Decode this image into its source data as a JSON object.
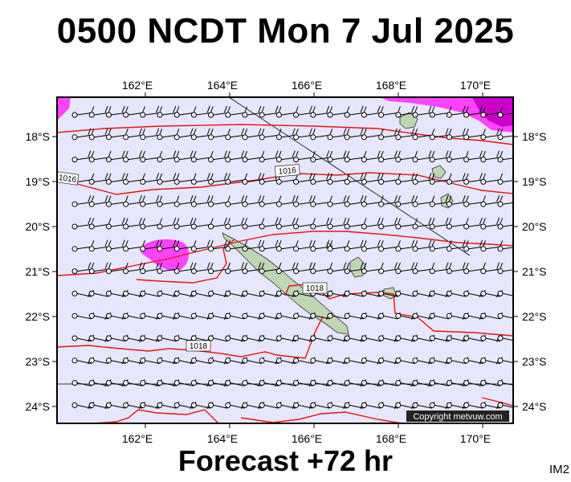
{
  "title": "0500 NCDT Mon 7 Jul 2025",
  "footer": "Forecast +72 hr",
  "image_code": "IM2",
  "copyright": "Copyright metvuw.com",
  "lon_labels": [
    "162°E",
    "164°E",
    "166°E",
    "168°E",
    "170°E"
  ],
  "lat_labels": [
    "18°S",
    "19°S",
    "20°S",
    "21°S",
    "22°S",
    "23°S",
    "24°S"
  ],
  "isobar_labels": [
    "1016",
    "1016",
    "1018",
    "1018"
  ],
  "colors": {
    "ocean": "#e6e6ff",
    "isobar": "#ee1111",
    "land": "#bfd6b3",
    "precip_light": "#ff44ff",
    "precip_heavy": "#cc00cc"
  },
  "region": {
    "lon_min": 160.2,
    "lon_max": 171.0,
    "lat_min": -24.4,
    "lat_max": -17.1
  }
}
